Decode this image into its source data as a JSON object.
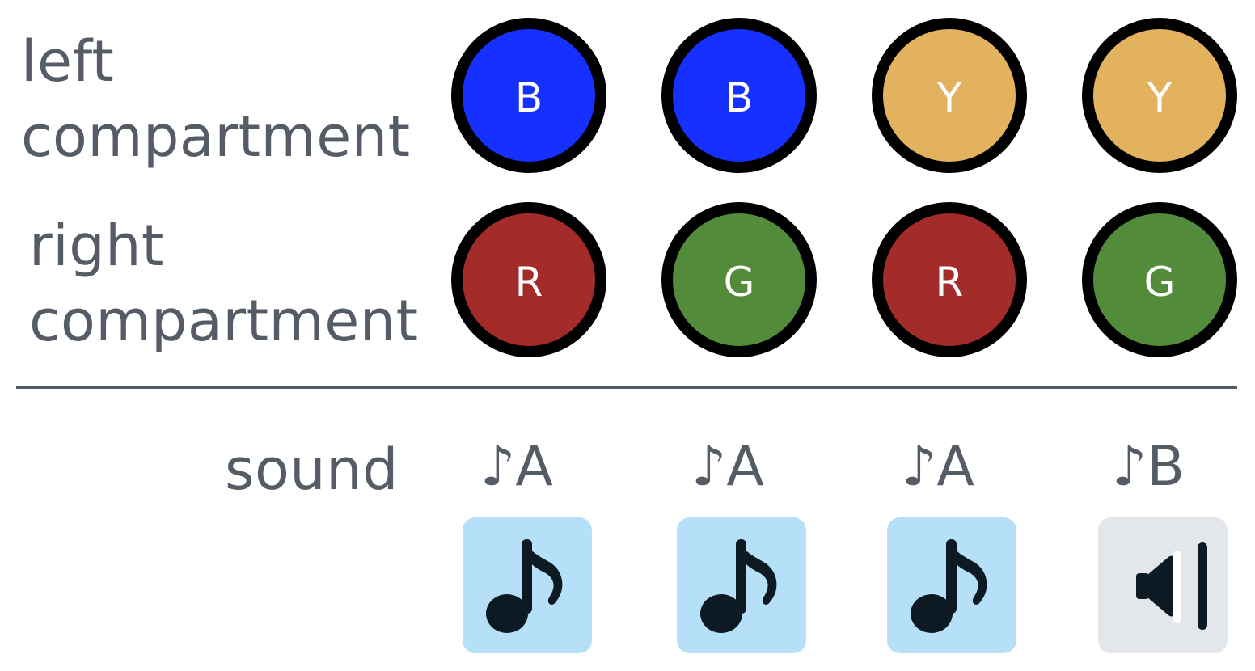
{
  "rows": {
    "left_label": "left\ncompartment",
    "right_label": "right\ncompartment",
    "sound_label": "sound"
  },
  "left_compartment": [
    {
      "letter": "B",
      "color": "#1530ff"
    },
    {
      "letter": "B",
      "color": "#1530ff"
    },
    {
      "letter": "Y",
      "color": "#e3b25e"
    },
    {
      "letter": "Y",
      "color": "#e3b25e"
    }
  ],
  "right_compartment": [
    {
      "letter": "R",
      "color": "#a32c2a"
    },
    {
      "letter": "G",
      "color": "#528c3b"
    },
    {
      "letter": "R",
      "color": "#a32c2a"
    },
    {
      "letter": "G",
      "color": "#528c3b"
    }
  ],
  "sounds": [
    {
      "note": "♪A",
      "icon": "music-note-icon",
      "tile_color": "#b5e0f8"
    },
    {
      "note": "♪A",
      "icon": "music-note-icon",
      "tile_color": "#b5e0f8"
    },
    {
      "note": "♪A",
      "icon": "music-note-icon",
      "tile_color": "#b5e0f8"
    },
    {
      "note": "♪B",
      "icon": "speaker-low-volume-icon",
      "tile_color": "#e3e6ea"
    }
  ]
}
